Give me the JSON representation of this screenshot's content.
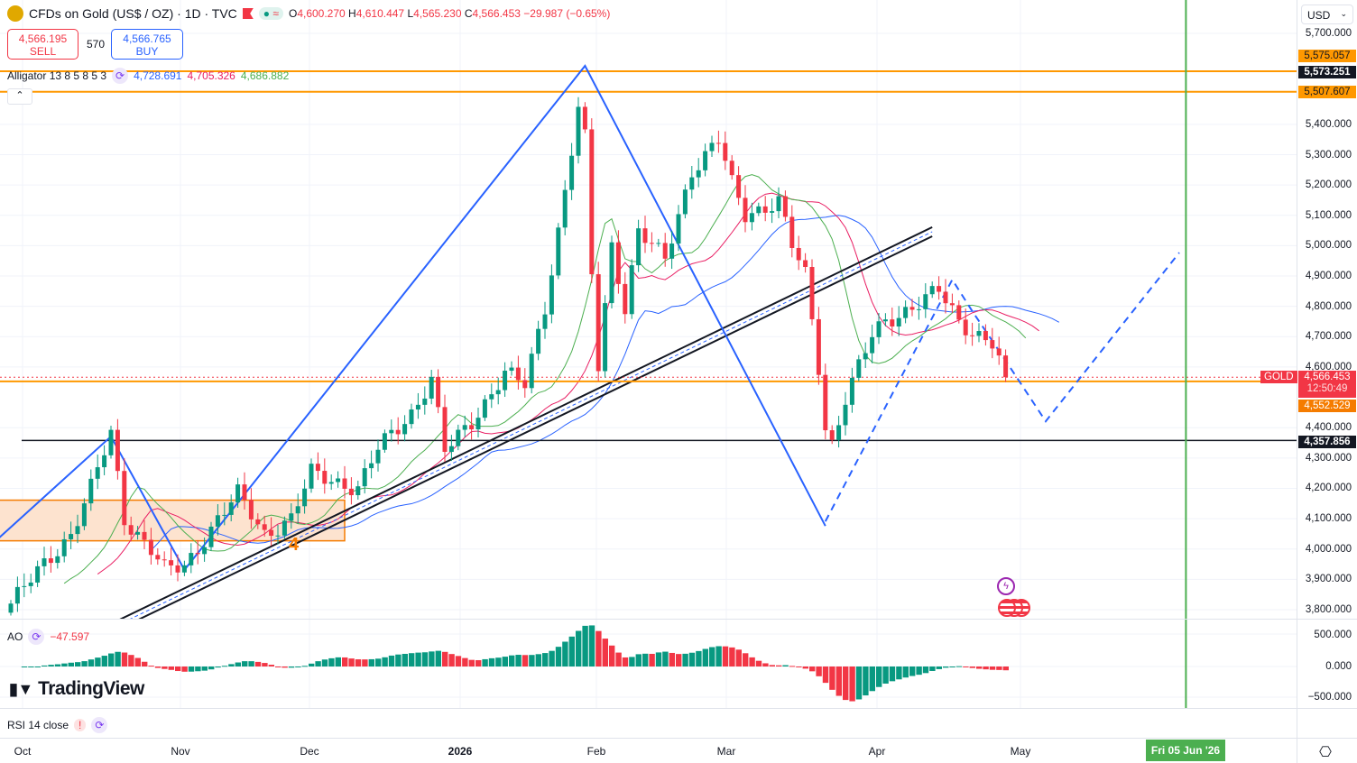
{
  "header": {
    "symbol": "CFDs on Gold (US$ / OZ) · 1D · TVC",
    "o_label": "O",
    "o": "4,600.270",
    "h_label": "H",
    "h": "4,610.447",
    "l_label": "L",
    "l": "4,565.230",
    "c_label": "C",
    "c": "4,566.453",
    "change": "−29.987 (−0.65%)"
  },
  "quote": {
    "sell_price": "4,566.195",
    "sell_label": "SELL",
    "spread": "570",
    "buy_price": "4,566.765",
    "buy_label": "BUY"
  },
  "alligator": {
    "label": "Alligator 13 8 5 8 5 3",
    "jaw": "4,728.691",
    "teeth": "4,705.326",
    "lips": "4,686.882"
  },
  "ao": {
    "label": "AO",
    "value": "−47.597",
    "axis": [
      "500.000",
      "0.000",
      "−500.000"
    ]
  },
  "rsi": {
    "label": "RSI 14 close",
    "warn": "!"
  },
  "brand": "TradingView",
  "currency": "USD",
  "colors": {
    "up": "#089981",
    "down": "#f23645",
    "orange": "#ff9800",
    "blue": "#2962ff",
    "green": "#4caf50"
  },
  "price_axis": [
    "5,700.000",
    "5,400.000",
    "5,300.000",
    "5,200.000",
    "5,100.000",
    "5,000.000",
    "4,900.000",
    "4,800.000",
    "4,700.000",
    "4,600.000",
    "4,400.000",
    "4,300.000",
    "4,200.000",
    "4,100.000",
    "4,000.000",
    "3,900.000",
    "3,800.000"
  ],
  "price_tags": {
    "t1": "5,575.057",
    "t2": "5,573.251",
    "t3": "5,507.607",
    "gold_label": "GOLD",
    "last": "4,566.453",
    "countdown": "12:50:49",
    "t4": "4,552.529",
    "t5": "4,357.856"
  },
  "time_axis": [
    "Oct",
    "Nov",
    "Dec",
    "2026",
    "Feb",
    "Mar",
    "Apr",
    "May"
  ],
  "cursor_date": "Fri 05 Jun '26",
  "annotation_number": "4",
  "chart_data": {
    "type": "candlestick",
    "title": "CFDs on Gold (US$ / OZ) · 1D · TVC",
    "ylim": [
      3760,
      5740
    ],
    "bars": 150,
    "close_waypoints": [
      [
        0,
        3820
      ],
      [
        5,
        3950
      ],
      [
        9,
        4050
      ],
      [
        12,
        4200
      ],
      [
        15,
        4380
      ],
      [
        17,
        4100
      ],
      [
        21,
        4000
      ],
      [
        23,
        3930
      ],
      [
        26,
        3940
      ],
      [
        31,
        4100
      ],
      [
        34,
        4180
      ],
      [
        38,
        4050
      ],
      [
        42,
        4100
      ],
      [
        45,
        4250
      ],
      [
        52,
        4200
      ],
      [
        55,
        4330
      ],
      [
        60,
        4450
      ],
      [
        63,
        4560
      ],
      [
        65,
        4320
      ],
      [
        69,
        4420
      ],
      [
        74,
        4580
      ],
      [
        77,
        4540
      ],
      [
        80,
        4800
      ],
      [
        82,
        5050
      ],
      [
        85,
        5450
      ],
      [
        86,
        5350
      ],
      [
        87,
        4900
      ],
      [
        88,
        4600
      ],
      [
        90,
        5000
      ],
      [
        92,
        4800
      ],
      [
        94,
        5050
      ],
      [
        98,
        4950
      ],
      [
        102,
        5250
      ],
      [
        106,
        5350
      ],
      [
        108,
        5200
      ],
      [
        110,
        5100
      ],
      [
        115,
        5150
      ],
      [
        117,
        5000
      ],
      [
        119,
        4900
      ],
      [
        121,
        4600
      ],
      [
        122,
        4400
      ],
      [
        123,
        4350
      ],
      [
        125,
        4500
      ],
      [
        129,
        4700
      ],
      [
        131,
        4750
      ],
      [
        135,
        4800
      ],
      [
        139,
        4850
      ],
      [
        142,
        4750
      ],
      [
        144,
        4720
      ],
      [
        147,
        4680
      ],
      [
        149,
        4566.453
      ]
    ],
    "levels": {
      "orange": [
        5575.057,
        5507.607,
        4552.529
      ],
      "black": [
        4357.856
      ],
      "last": 4566.453
    },
    "zigzag": [
      [
        -2,
        4032
      ],
      [
        15,
        4371
      ],
      [
        26,
        3931
      ],
      [
        86,
        5593
      ],
      [
        122,
        4076
      ]
    ],
    "projection": [
      [
        122,
        4091
      ],
      [
        141,
        4888
      ],
      [
        144,
        4784
      ],
      [
        149,
        4621
      ],
      [
        155,
        4421
      ],
      [
        175,
        4977
      ]
    ],
    "channel": [
      [
        16,
        3764
      ],
      [
        138,
        5061
      ]
    ],
    "box": {
      "from": -2,
      "to": 50,
      "top": 4161,
      "bottom": 4027
    },
    "cursor_bar": 176
  }
}
